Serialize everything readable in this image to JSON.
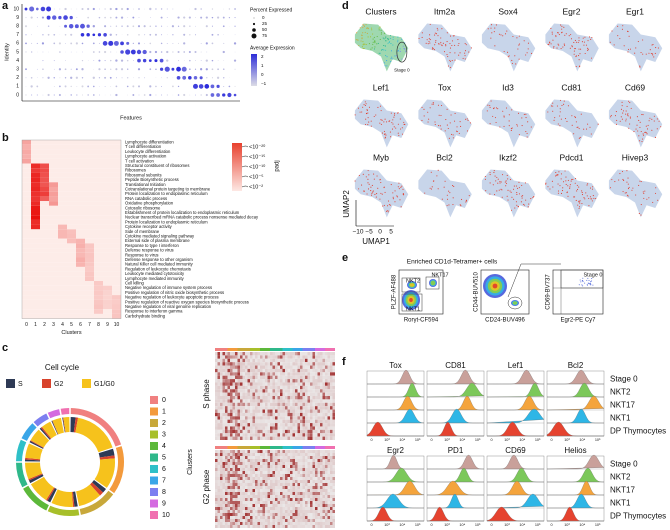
{
  "panel_a": {
    "label": "a",
    "y_axis": "Identity",
    "x_axis": "Features",
    "identities": [
      "10",
      "9",
      "8",
      "7",
      "6",
      "5",
      "4",
      "3",
      "2",
      "1",
      "0"
    ],
    "size_legend": {
      "title": "Percent Expressed",
      "ticks": [
        "0",
        "25",
        "50",
        "75"
      ]
    },
    "color_legend": {
      "title": "Average Expression",
      "ticks": [
        "2",
        "1",
        "0",
        "−1"
      ]
    }
  },
  "panel_b": {
    "label": "b",
    "terms": [
      "Lymphocyte differentiation",
      "T cell differentiation",
      "Leukocyte differentiation",
      "Lymphocyte activation",
      "T cell activation",
      "Structural constituent of ribosomes",
      "Ribosomes",
      "Ribosomal subunits",
      "Peptide Biosynthetic process",
      "Translational Initiation",
      "Cotranslational protein targeting to membrane",
      "Protein localization to endoplasmic reticulum",
      "RNA catabolic process",
      "Oxidative phosphorylation",
      "Cytosolic ribosome",
      "Establishment of protein localization to endoplasmic reticulum",
      "Nuclear transcribed mRNA catabolic process nonsense mediated decay",
      "Protein localization to endoplasmic reticulum",
      "Cytokine receptor activity",
      "Side of membrane",
      "Cytokine mediated signaling pathway",
      "External side of plasma membrane",
      "Response to type I interferon",
      "Defense response to virus",
      "Response to virus",
      "Defense response to other organism",
      "Natural Killer cell mediated immunity",
      "Regulation of leukocyte chemotaxis",
      "Leukocyte mediated cytotoxicity",
      "Lymphocyte mediated immunity",
      "Cell killing",
      "Negative regulation of immune system process",
      "Positive regulation of nitric oxide biosynthetic process",
      "Negative regulation of leukocyte apoptotic process",
      "Positive regulation of reactive oxygen species biosynthetic process",
      "Negative regulation of viral genome replication",
      "Response to interferon gamma",
      "Carbohydrate binding"
    ],
    "clusters": [
      "0",
      "1",
      "2",
      "3",
      "4",
      "5",
      "6",
      "7",
      "8",
      "9",
      "10"
    ],
    "x_axis": "Clusters",
    "legend_title": "padj",
    "legend_ticks": [
      "<10⁻²⁰",
      "<10⁻¹⁵",
      "<10⁻¹⁰",
      "<10⁻⁵",
      "<10⁻²"
    ]
  },
  "panel_c": {
    "label": "c",
    "title": "Cell cycle",
    "phases": [
      {
        "name": "S",
        "color": "#2e3a55"
      },
      {
        "name": "G2",
        "color": "#d8432c"
      },
      {
        "name": "G1/G0",
        "color": "#f6c21c"
      }
    ],
    "cluster_title": "Clusters",
    "clusters": [
      {
        "name": "0",
        "color": "#f08080"
      },
      {
        "name": "1",
        "color": "#f39a3c"
      },
      {
        "name": "2",
        "color": "#c8a83a"
      },
      {
        "name": "3",
        "color": "#a7bf2a"
      },
      {
        "name": "4",
        "color": "#5cb83a"
      },
      {
        "name": "5",
        "color": "#2fb88a"
      },
      {
        "name": "6",
        "color": "#2ec0c8"
      },
      {
        "name": "7",
        "color": "#3aa6e8"
      },
      {
        "name": "8",
        "color": "#7c7ff0"
      },
      {
        "name": "9",
        "color": "#d46ae0"
      },
      {
        "name": "10",
        "color": "#f070b0"
      }
    ],
    "heatmaps": [
      "S phase",
      "G2 phase"
    ]
  },
  "panel_d": {
    "label": "d",
    "genes": [
      "Clusters",
      "Itm2a",
      "Sox4",
      "Egr2",
      "Egr1",
      "Lef1",
      "Tox",
      "Id3",
      "Cd81",
      "Cd69",
      "Myb",
      "Bcl2",
      "Ikzf2",
      "Pdcd1",
      "Hivep3"
    ],
    "stage_label": "Stage 0",
    "y_axis": "UMAP2",
    "x_axis": "UMAP1",
    "x_ticks": [
      "−10",
      "−5",
      "0",
      "5"
    ]
  },
  "panel_e": {
    "label": "e",
    "title": "Enriched CD1d-Tetramer+ cells",
    "plots": [
      {
        "y_axis": "PLZF-AF488",
        "x_axis": "Rorγt-CF594",
        "gates": [
          "NKT2",
          "NKT17",
          "NKT1"
        ]
      },
      {
        "y_axis": "CD44-BUV510",
        "x_axis": "CD24-BUV496"
      },
      {
        "y_axis": "CD69-BV737",
        "x_axis": "Egr2-PE Cy7",
        "gates": [
          "Stage 0"
        ]
      }
    ]
  },
  "panel_f": {
    "label": "f",
    "populations": [
      {
        "name": "Stage 0",
        "color": "#c9a09a"
      },
      {
        "name": "NKT2",
        "color": "#7cc85a"
      },
      {
        "name": "NKT17",
        "color": "#f4a43c"
      },
      {
        "name": "NKT1",
        "color": "#2eb6e6"
      },
      {
        "name": "DP Thymocytes",
        "color": "#e5432f"
      }
    ],
    "rows": [
      [
        "Tox",
        "CD81",
        "Lef1",
        "Bcl2"
      ],
      [
        "Egr2",
        "PD1",
        "CD69",
        "Helios"
      ]
    ],
    "x_ticks": [
      "0",
      "10³",
      "10⁴",
      "10⁵"
    ]
  }
}
